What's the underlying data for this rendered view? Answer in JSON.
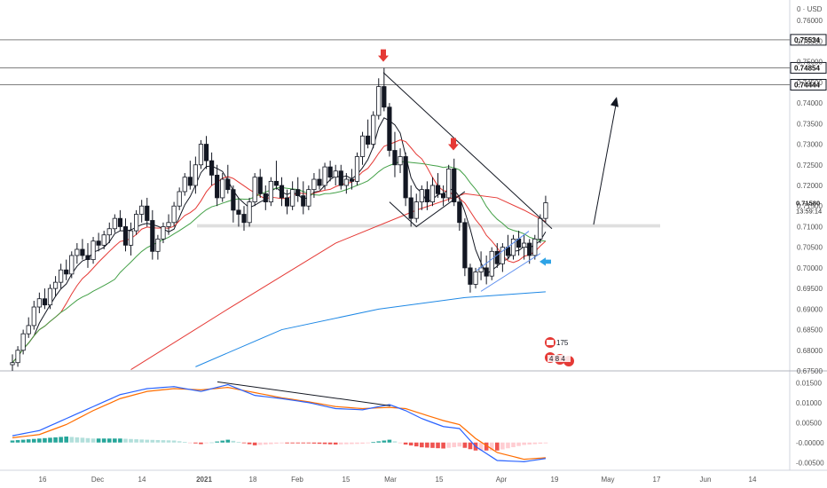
{
  "chart_data": {
    "type": "candlestick",
    "x_ticks": [
      "16",
      "Dec",
      "14",
      "2021",
      "18",
      "Feb",
      "15",
      "Mar",
      "15",
      "Apr",
      "19",
      "May",
      "17",
      "Jun",
      "14"
    ],
    "price_axis": {
      "currency_label": "USD",
      "ticks": [
        "0.76000",
        "0.75500",
        "0.75000",
        "0.74500",
        "0.74000",
        "0.73500",
        "0.73000",
        "0.72500",
        "0.72000",
        "0.71500",
        "0.71000",
        "0.70500",
        "0.70000",
        "0.69500",
        "0.69000",
        "0.68500",
        "0.68000",
        "0.67500"
      ],
      "range": [
        0.675,
        0.765
      ]
    },
    "levels": [
      "0.75534",
      "0.74854",
      "0.74444"
    ],
    "current_price": "0.71580",
    "countdown": "13:59:14",
    "support_zone": [
      0.7098,
      0.7106
    ],
    "events": {
      "label_top": "175",
      "label_bottom": "4 8 4"
    },
    "ohlc": [
      [
        0.6765,
        0.679,
        0.675,
        0.677
      ],
      [
        0.677,
        0.681,
        0.676,
        0.68
      ],
      [
        0.68,
        0.685,
        0.679,
        0.684
      ],
      [
        0.684,
        0.688,
        0.683,
        0.686
      ],
      [
        0.686,
        0.692,
        0.685,
        0.6905
      ],
      [
        0.6905,
        0.694,
        0.689,
        0.6925
      ],
      [
        0.6925,
        0.695,
        0.69,
        0.691
      ],
      [
        0.691,
        0.696,
        0.69,
        0.695
      ],
      [
        0.695,
        0.698,
        0.693,
        0.6965
      ],
      [
        0.6965,
        0.701,
        0.695,
        0.6995
      ],
      [
        0.6995,
        0.702,
        0.697,
        0.6985
      ],
      [
        0.6985,
        0.704,
        0.6975,
        0.703
      ],
      [
        0.703,
        0.706,
        0.701,
        0.7045
      ],
      [
        0.7045,
        0.707,
        0.702,
        0.703
      ],
      [
        0.703,
        0.706,
        0.7,
        0.702
      ],
      [
        0.702,
        0.7075,
        0.701,
        0.7065
      ],
      [
        0.7065,
        0.7085,
        0.704,
        0.7055
      ],
      [
        0.7055,
        0.709,
        0.7045,
        0.708
      ],
      [
        0.708,
        0.711,
        0.706,
        0.7095
      ],
      [
        0.7095,
        0.713,
        0.7085,
        0.712
      ],
      [
        0.712,
        0.714,
        0.709,
        0.71
      ],
      [
        0.71,
        0.712,
        0.704,
        0.7055
      ],
      [
        0.7055,
        0.711,
        0.703,
        0.709
      ],
      [
        0.709,
        0.714,
        0.708,
        0.713
      ],
      [
        0.713,
        0.7165,
        0.711,
        0.715
      ],
      [
        0.715,
        0.717,
        0.71,
        0.7115
      ],
      [
        0.7115,
        0.714,
        0.702,
        0.704
      ],
      [
        0.704,
        0.708,
        0.702,
        0.707
      ],
      [
        0.707,
        0.711,
        0.706,
        0.71
      ],
      [
        0.71,
        0.713,
        0.708,
        0.711
      ],
      [
        0.711,
        0.716,
        0.71,
        0.715
      ],
      [
        0.715,
        0.7195,
        0.714,
        0.7185
      ],
      [
        0.7185,
        0.723,
        0.7175,
        0.722
      ],
      [
        0.722,
        0.726,
        0.719,
        0.72
      ],
      [
        0.72,
        0.727,
        0.718,
        0.725
      ],
      [
        0.725,
        0.731,
        0.724,
        0.73
      ],
      [
        0.73,
        0.732,
        0.724,
        0.726
      ],
      [
        0.726,
        0.728,
        0.72,
        0.7225
      ],
      [
        0.7225,
        0.725,
        0.715,
        0.717
      ],
      [
        0.717,
        0.723,
        0.716,
        0.7215
      ],
      [
        0.7215,
        0.725,
        0.718,
        0.719
      ],
      [
        0.719,
        0.72,
        0.711,
        0.714
      ],
      [
        0.714,
        0.717,
        0.71,
        0.713
      ],
      [
        0.713,
        0.715,
        0.709,
        0.711
      ],
      [
        0.711,
        0.717,
        0.71,
        0.716
      ],
      [
        0.716,
        0.723,
        0.715,
        0.722
      ],
      [
        0.722,
        0.724,
        0.717,
        0.718
      ],
      [
        0.718,
        0.72,
        0.714,
        0.716
      ],
      [
        0.716,
        0.722,
        0.715,
        0.721
      ],
      [
        0.721,
        0.726,
        0.719,
        0.72
      ],
      [
        0.72,
        0.722,
        0.715,
        0.717
      ],
      [
        0.717,
        0.719,
        0.713,
        0.715
      ],
      [
        0.715,
        0.721,
        0.714,
        0.719
      ],
      [
        0.719,
        0.722,
        0.716,
        0.7175
      ],
      [
        0.7175,
        0.721,
        0.713,
        0.715
      ],
      [
        0.715,
        0.72,
        0.714,
        0.719
      ],
      [
        0.719,
        0.723,
        0.717,
        0.7215
      ],
      [
        0.7215,
        0.724,
        0.719,
        0.72
      ],
      [
        0.72,
        0.7255,
        0.719,
        0.7245
      ],
      [
        0.7245,
        0.726,
        0.721,
        0.722
      ],
      [
        0.722,
        0.725,
        0.72,
        0.7235
      ],
      [
        0.7235,
        0.725,
        0.719,
        0.72
      ],
      [
        0.72,
        0.723,
        0.718,
        0.7215
      ],
      [
        0.7215,
        0.724,
        0.719,
        0.721
      ],
      [
        0.721,
        0.728,
        0.72,
        0.727
      ],
      [
        0.727,
        0.733,
        0.725,
        0.732
      ],
      [
        0.732,
        0.736,
        0.729,
        0.73
      ],
      [
        0.73,
        0.738,
        0.729,
        0.737
      ],
      [
        0.737,
        0.746,
        0.736,
        0.744
      ],
      [
        0.744,
        0.7485,
        0.738,
        0.739
      ],
      [
        0.739,
        0.74,
        0.727,
        0.7285
      ],
      [
        0.7285,
        0.733,
        0.722,
        0.725
      ],
      [
        0.725,
        0.729,
        0.723,
        0.727
      ],
      [
        0.727,
        0.728,
        0.715,
        0.717
      ],
      [
        0.717,
        0.72,
        0.71,
        0.712
      ],
      [
        0.712,
        0.718,
        0.711,
        0.716
      ],
      [
        0.716,
        0.72,
        0.714,
        0.719
      ],
      [
        0.719,
        0.721,
        0.714,
        0.716
      ],
      [
        0.716,
        0.722,
        0.715,
        0.72
      ],
      [
        0.72,
        0.723,
        0.717,
        0.718
      ],
      [
        0.718,
        0.72,
        0.715,
        0.717
      ],
      [
        0.717,
        0.725,
        0.716,
        0.724
      ],
      [
        0.724,
        0.7265,
        0.715,
        0.716
      ],
      [
        0.716,
        0.717,
        0.709,
        0.711
      ],
      [
        0.711,
        0.712,
        0.698,
        0.7
      ],
      [
        0.7,
        0.701,
        0.694,
        0.696
      ],
      [
        0.696,
        0.7,
        0.695,
        0.699
      ],
      [
        0.699,
        0.704,
        0.697,
        0.7
      ],
      [
        0.7,
        0.703,
        0.696,
        0.698
      ],
      [
        0.698,
        0.705,
        0.697,
        0.704
      ],
      [
        0.704,
        0.706,
        0.7,
        0.701
      ],
      [
        0.701,
        0.706,
        0.699,
        0.705
      ],
      [
        0.705,
        0.708,
        0.702,
        0.703
      ],
      [
        0.703,
        0.708,
        0.702,
        0.707
      ],
      [
        0.707,
        0.709,
        0.703,
        0.705
      ],
      [
        0.705,
        0.708,
        0.702,
        0.706
      ],
      [
        0.706,
        0.707,
        0.701,
        0.703
      ],
      [
        0.703,
        0.708,
        0.702,
        0.707
      ],
      [
        0.707,
        0.713,
        0.706,
        0.712
      ],
      [
        0.712,
        0.7175,
        0.711,
        0.7158
      ]
    ],
    "moving_averages": [
      {
        "color": "#131722",
        "period": 5
      },
      {
        "color": "#e53935",
        "period": 10
      },
      {
        "color": "#43a047",
        "period": 20
      },
      {
        "color": "#e53935",
        "period": 50,
        "values": [
          [
            22,
            0.6753
          ],
          [
            40,
            0.69
          ],
          [
            60,
            0.706
          ],
          [
            75,
            0.714
          ],
          [
            84,
            0.718
          ],
          [
            90,
            0.717
          ],
          [
            95,
            0.714
          ],
          [
            99,
            0.7112
          ]
        ]
      },
      {
        "color": "#1e88e5",
        "period": 100,
        "values": [
          [
            34,
            0.676
          ],
          [
            50,
            0.685
          ],
          [
            68,
            0.69
          ],
          [
            84,
            0.6928
          ],
          [
            99,
            0.6942
          ]
        ]
      }
    ],
    "macd": {
      "axis_ticks": [
        "0.01500",
        "0.01000",
        "0.00500",
        "-0.00000",
        "-0.00500"
      ],
      "range": [
        -0.0065,
        0.0175
      ],
      "macd_line": [
        [
          0,
          0.0017
        ],
        [
          5,
          0.003
        ],
        [
          10,
          0.006
        ],
        [
          15,
          0.009
        ],
        [
          20,
          0.012
        ],
        [
          25,
          0.0135
        ],
        [
          30,
          0.014
        ],
        [
          35,
          0.0128
        ],
        [
          40,
          0.0145
        ],
        [
          45,
          0.0118
        ],
        [
          50,
          0.011
        ],
        [
          55,
          0.01
        ],
        [
          60,
          0.0085
        ],
        [
          65,
          0.0082
        ],
        [
          70,
          0.0095
        ],
        [
          73,
          0.008
        ],
        [
          76,
          0.006
        ],
        [
          80,
          0.004
        ],
        [
          83,
          0.0035
        ],
        [
          86,
          -0.001
        ],
        [
          90,
          -0.0045
        ],
        [
          95,
          -0.0048
        ],
        [
          99,
          -0.004
        ]
      ],
      "signal_line": [
        [
          0,
          0.0012
        ],
        [
          5,
          0.002
        ],
        [
          10,
          0.0045
        ],
        [
          15,
          0.008
        ],
        [
          20,
          0.011
        ],
        [
          25,
          0.0128
        ],
        [
          30,
          0.0135
        ],
        [
          35,
          0.0132
        ],
        [
          40,
          0.0138
        ],
        [
          45,
          0.0125
        ],
        [
          50,
          0.0112
        ],
        [
          55,
          0.0102
        ],
        [
          60,
          0.009
        ],
        [
          65,
          0.0085
        ],
        [
          70,
          0.0088
        ],
        [
          73,
          0.0085
        ],
        [
          76,
          0.0072
        ],
        [
          80,
          0.0055
        ],
        [
          83,
          0.0045
        ],
        [
          86,
          0.001
        ],
        [
          90,
          -0.0025
        ],
        [
          95,
          -0.0042
        ],
        [
          99,
          -0.0038
        ]
      ]
    },
    "grid": false
  }
}
